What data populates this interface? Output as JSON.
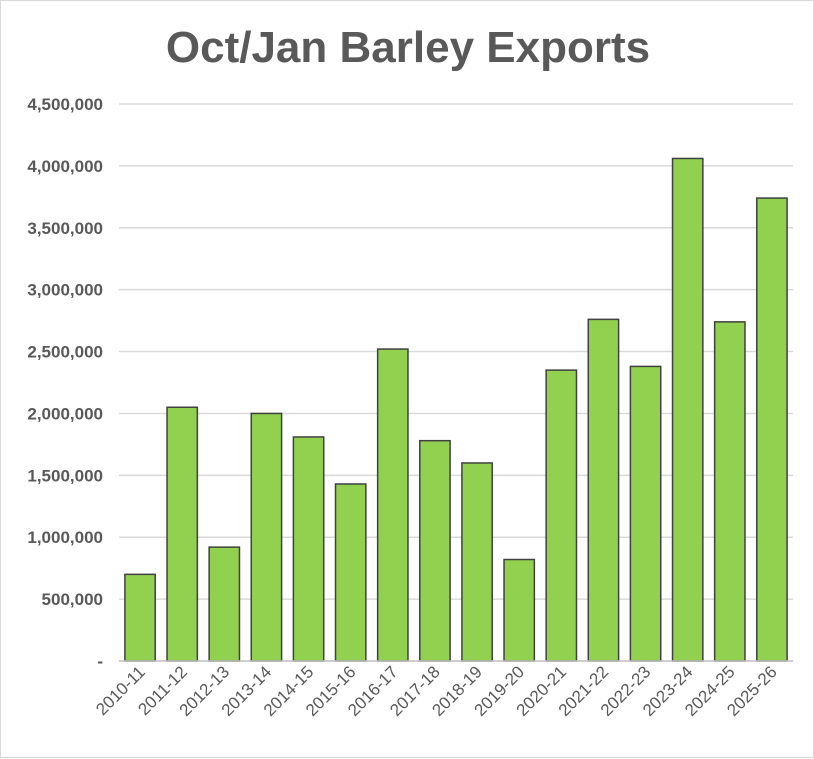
{
  "chart_data": {
    "type": "bar",
    "title": "Oct/Jan Barley Exports",
    "xlabel": "",
    "ylabel": "",
    "categories": [
      "2010-11",
      "2011-12",
      "2012-13",
      "2013-14",
      "2014-15",
      "2015-16",
      "2016-17",
      "2017-18",
      "2018-19",
      "2019-20",
      "2020-21",
      "2021-22",
      "2022-23",
      "2023-24",
      "2024-25",
      "2025-26"
    ],
    "values": [
      700000,
      2050000,
      920000,
      2000000,
      1810000,
      1430000,
      2520000,
      1780000,
      1600000,
      820000,
      2350000,
      2760000,
      2380000,
      4060000,
      2740000,
      3740000
    ],
    "ylim": [
      0,
      4500000
    ],
    "y_ticks": [
      {
        "value": 0,
        "label": "-"
      },
      {
        "value": 500000,
        "label": "500,000"
      },
      {
        "value": 1000000,
        "label": "1,000,000"
      },
      {
        "value": 1500000,
        "label": "1,500,000"
      },
      {
        "value": 2000000,
        "label": "2,000,000"
      },
      {
        "value": 2500000,
        "label": "2,500,000"
      },
      {
        "value": 3000000,
        "label": "3,000,000"
      },
      {
        "value": 3500000,
        "label": "3,500,000"
      },
      {
        "value": 4000000,
        "label": "4,000,000"
      },
      {
        "value": 4500000,
        "label": "4,500,000"
      }
    ],
    "grid": true,
    "legend": "none",
    "colors": {
      "bar_fill": "#92d050",
      "bar_stroke": "#404040",
      "grid": "#d9d9d9",
      "text": "#595959"
    }
  }
}
